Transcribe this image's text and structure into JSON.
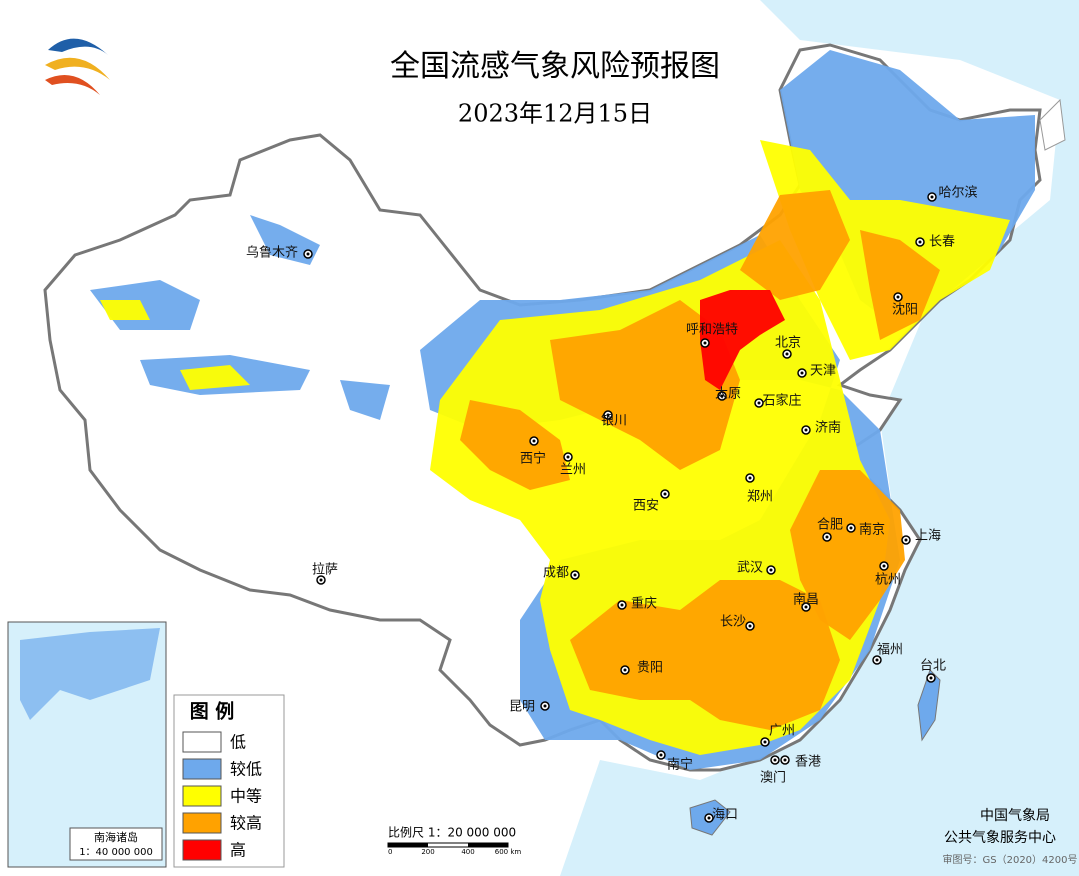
{
  "header": {
    "title": "全国流感气象风险预报图",
    "date": "2023年12月15日"
  },
  "cities": [
    "乌鲁木齐",
    "哈尔滨",
    "长春",
    "沈阳",
    "呼和浩特",
    "北京",
    "天津",
    "太原",
    "石家庄",
    "济南",
    "银川",
    "西宁",
    "兰州",
    "郑州",
    "西安",
    "合肥",
    "南京",
    "上海",
    "武汉",
    "杭州",
    "成都",
    "重庆",
    "南昌",
    "长沙",
    "福州",
    "台北",
    "贵阳",
    "拉萨",
    "昆明",
    "广州",
    "南宁",
    "香港",
    "澳门",
    "海口"
  ],
  "legend": {
    "title": "图 例",
    "items": [
      {
        "label": "低",
        "color": "#ffffff"
      },
      {
        "label": "较低",
        "color": "#6ea9ec"
      },
      {
        "label": "中等",
        "color": "#ffff00"
      },
      {
        "label": "较高",
        "color": "#ffa200"
      },
      {
        "label": "高",
        "color": "#ff0000"
      }
    ]
  },
  "scale": {
    "label": "比例尺 1：20 000 000",
    "ticks": [
      "0",
      "200",
      "400",
      "600 km"
    ]
  },
  "inset": {
    "title": "南海诸岛",
    "scale": "1：40 000 000"
  },
  "footer": {
    "org": "中国气象局",
    "center": "公共气象服务中心",
    "review": "审图号：GS（2020）4200号"
  }
}
